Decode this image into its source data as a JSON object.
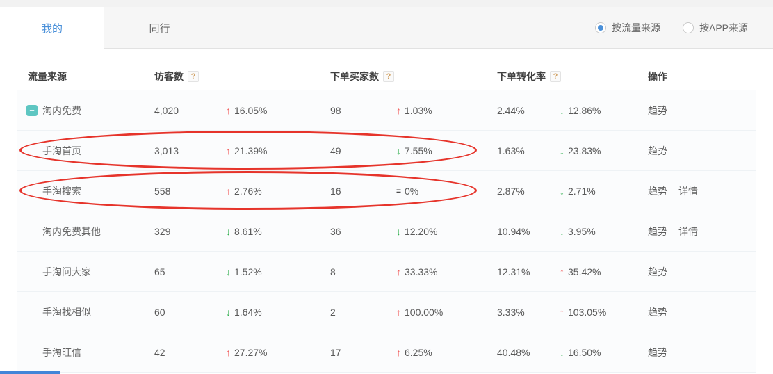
{
  "tabs": [
    {
      "label": "我的",
      "active": true
    },
    {
      "label": "同行",
      "active": false
    }
  ],
  "view_options": [
    {
      "label": "按流量来源",
      "selected": true
    },
    {
      "label": "按APP来源",
      "selected": false
    }
  ],
  "table": {
    "columns": [
      {
        "label": "流量来源",
        "has_help": false
      },
      {
        "label": "访客数",
        "has_help": true
      },
      {
        "label": "下单买家数",
        "has_help": true
      },
      {
        "label": "下单转化率",
        "has_help": true
      },
      {
        "label": "操作",
        "has_help": false
      }
    ],
    "rows": [
      {
        "name": "淘内免费",
        "expandable": true,
        "visitors": "4,020",
        "visitors_trend": "up",
        "visitors_change": "16.05%",
        "buyers": "98",
        "buyers_trend": "up",
        "buyers_change": "1.03%",
        "conversion": "2.44%",
        "conversion_trend": "down",
        "conversion_change": "12.86%",
        "actions": [
          "趋势"
        ],
        "circled": false
      },
      {
        "name": "手淘首页",
        "expandable": false,
        "visitors": "3,013",
        "visitors_trend": "up",
        "visitors_change": "21.39%",
        "buyers": "49",
        "buyers_trend": "down",
        "buyers_change": "7.55%",
        "conversion": "1.63%",
        "conversion_trend": "down",
        "conversion_change": "23.83%",
        "actions": [
          "趋势"
        ],
        "circled": true
      },
      {
        "name": "手淘搜索",
        "expandable": false,
        "visitors": "558",
        "visitors_trend": "up",
        "visitors_change": "2.76%",
        "buyers": "16",
        "buyers_trend": "flat",
        "buyers_change": "0%",
        "conversion": "2.87%",
        "conversion_trend": "down",
        "conversion_change": "2.71%",
        "actions": [
          "趋势",
          "详情"
        ],
        "circled": true
      },
      {
        "name": "淘内免费其他",
        "expandable": false,
        "visitors": "329",
        "visitors_trend": "down",
        "visitors_change": "8.61%",
        "buyers": "36",
        "buyers_trend": "down",
        "buyers_change": "12.20%",
        "conversion": "10.94%",
        "conversion_trend": "down",
        "conversion_change": "3.95%",
        "actions": [
          "趋势",
          "详情"
        ],
        "circled": false
      },
      {
        "name": "手淘问大家",
        "expandable": false,
        "visitors": "65",
        "visitors_trend": "down",
        "visitors_change": "1.52%",
        "buyers": "8",
        "buyers_trend": "up",
        "buyers_change": "33.33%",
        "conversion": "12.31%",
        "conversion_trend": "up",
        "conversion_change": "35.42%",
        "actions": [
          "趋势"
        ],
        "circled": false
      },
      {
        "name": "手淘找相似",
        "expandable": false,
        "visitors": "60",
        "visitors_trend": "down",
        "visitors_change": "1.64%",
        "buyers": "2",
        "buyers_trend": "up",
        "buyers_change": "100.00%",
        "conversion": "3.33%",
        "conversion_trend": "up",
        "conversion_change": "103.05%",
        "actions": [
          "趋势"
        ],
        "circled": false
      },
      {
        "name": "手淘旺信",
        "expandable": false,
        "visitors": "42",
        "visitors_trend": "up",
        "visitors_change": "27.27%",
        "buyers": "17",
        "buyers_trend": "up",
        "buyers_change": "6.25%",
        "conversion": "40.48%",
        "conversion_trend": "down",
        "conversion_change": "16.50%",
        "actions": [
          "趋势"
        ],
        "circled": false
      }
    ]
  },
  "icons": {
    "up_arrow": "↑",
    "down_arrow": "↓",
    "flat_equals": "=",
    "help": "?",
    "collapse_minus": "−"
  },
  "colors": {
    "up_red": "#f15b5b",
    "down_green": "#2fae4d",
    "accent_blue": "#4a90d9",
    "annotation_red": "#e6342b",
    "expand_teal": "#5ec6c2",
    "bottom_bar_blue": "#4285d8"
  },
  "annotations": {
    "circled_rows": [
      "手淘首页",
      "手淘搜索"
    ]
  }
}
